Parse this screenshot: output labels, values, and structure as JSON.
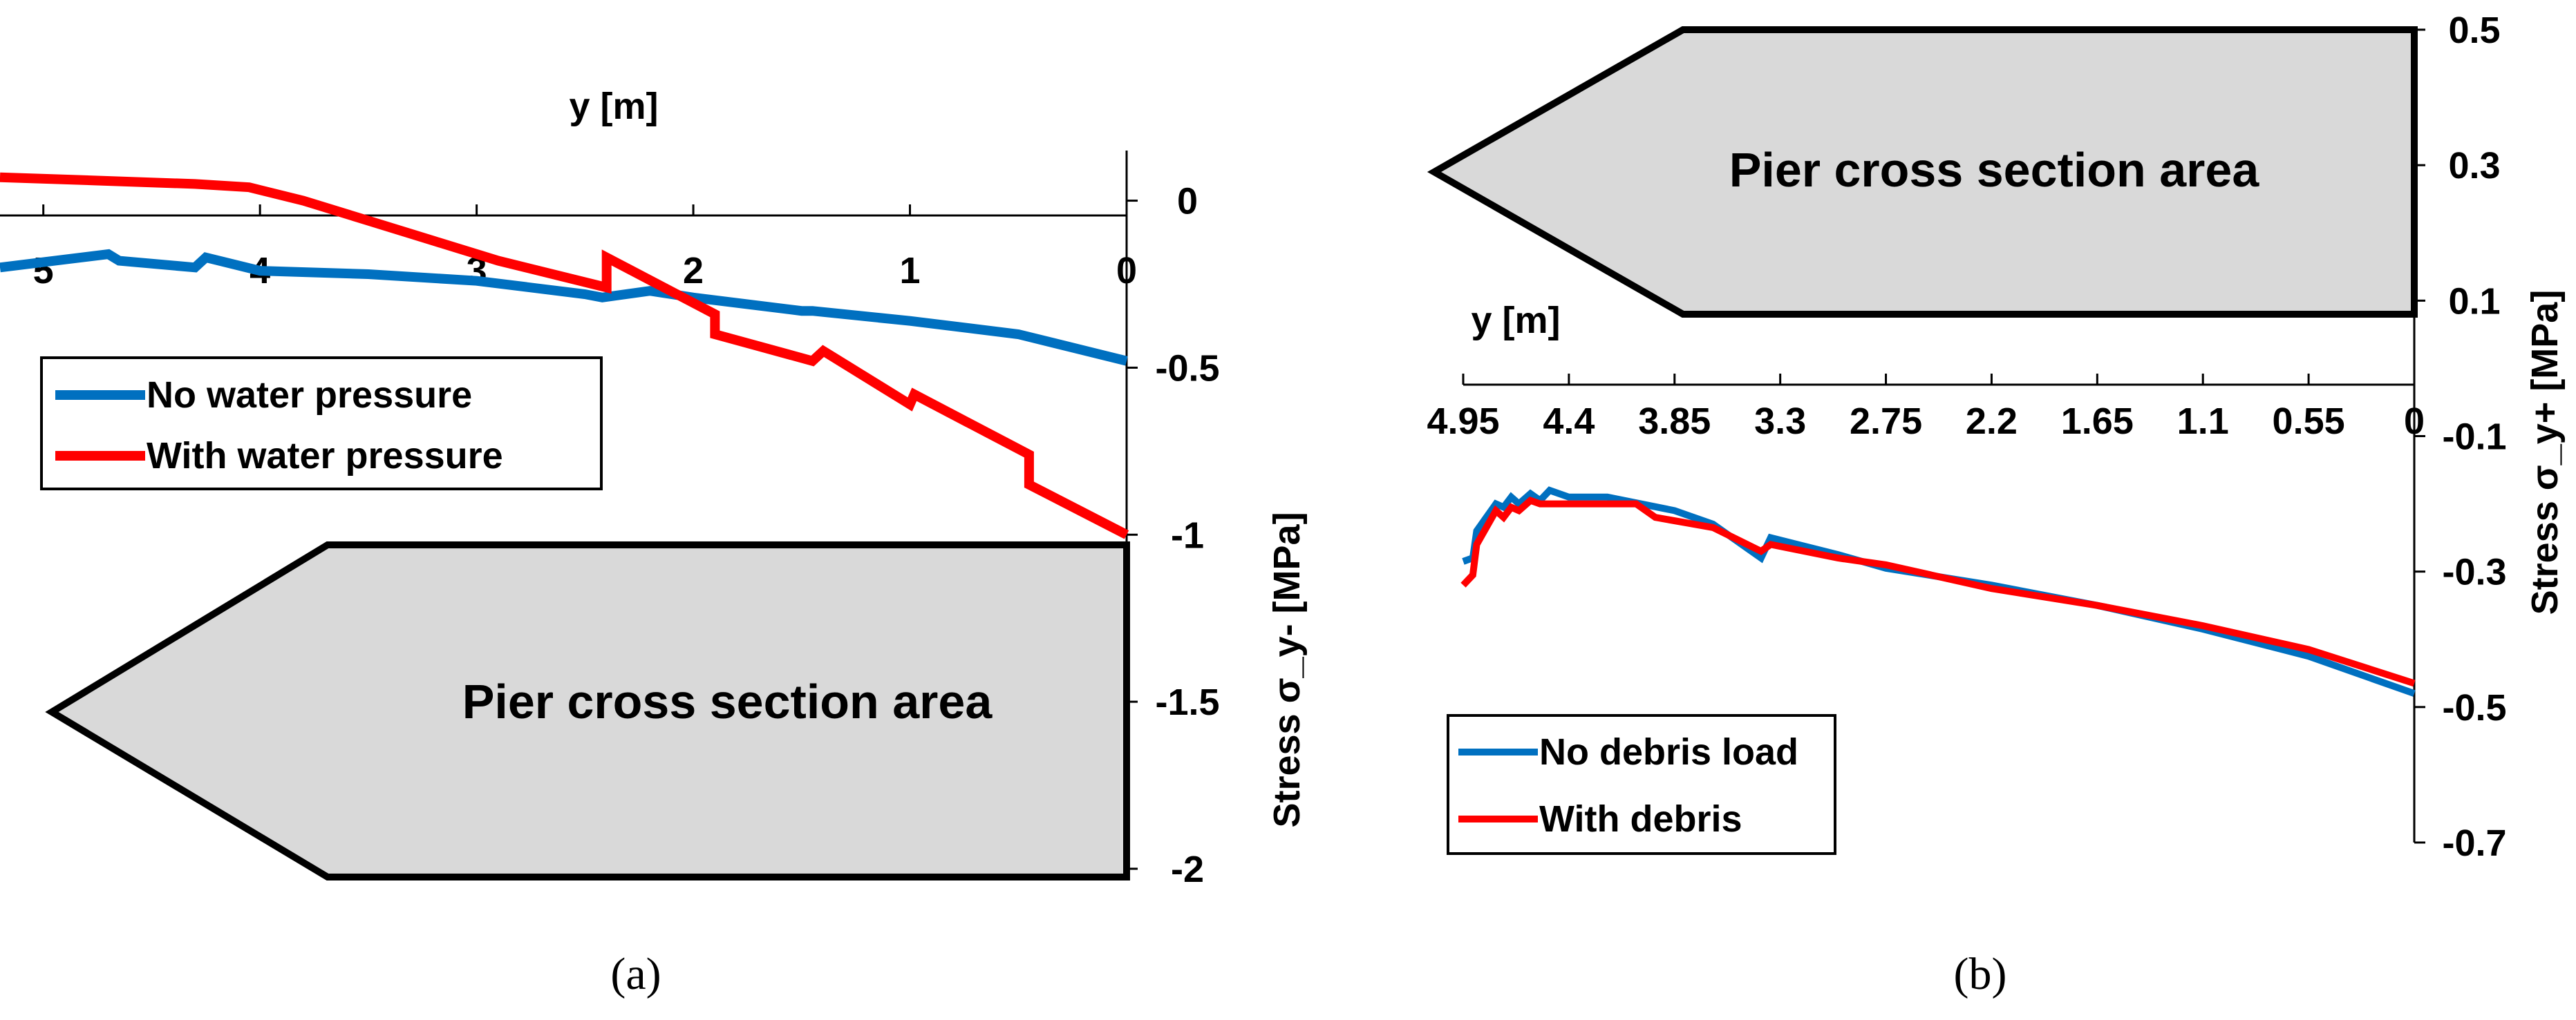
{
  "colors": {
    "no_load": "#0070C0",
    "with_load": "#FF0000",
    "pier_fill": "#D9D9D9"
  },
  "captions": {
    "a": "(a)",
    "b": "(b)"
  },
  "chart_data": [
    {
      "id": "a",
      "type": "line",
      "xlabel": "y [m]",
      "ylabel": "Stress σ_y- [MPa]",
      "xlim": [
        5.2,
        0
      ],
      "ylim": [
        -2.0,
        0.15
      ],
      "xticks": [
        {
          "value": 5,
          "label": "5"
        },
        {
          "value": 4,
          "label": "4"
        },
        {
          "value": 3,
          "label": "3"
        },
        {
          "value": 2,
          "label": "2"
        },
        {
          "value": 1,
          "label": "1"
        },
        {
          "value": 0,
          "label": "0"
        }
      ],
      "yticks": [
        {
          "value": 0,
          "label": "0"
        },
        {
          "value": -0.5,
          "label": "-0.5"
        },
        {
          "value": -1,
          "label": "-1"
        },
        {
          "value": -1.5,
          "label": "-1.5"
        },
        {
          "value": -2,
          "label": "-2"
        }
      ],
      "shape_label": "Pier cross section area",
      "legend_position": "left",
      "series": [
        {
          "name": "No water pressure",
          "color": "#0070C0",
          "points": [
            [
              5.2,
              -0.2
            ],
            [
              4.7,
              -0.16
            ],
            [
              4.65,
              -0.18
            ],
            [
              4.3,
              -0.2
            ],
            [
              4.25,
              -0.17
            ],
            [
              4.0,
              -0.21
            ],
            [
              3.5,
              -0.22
            ],
            [
              3.0,
              -0.24
            ],
            [
              2.5,
              -0.28
            ],
            [
              2.42,
              -0.29
            ],
            [
              2.2,
              -0.27
            ],
            [
              2.0,
              -0.29
            ],
            [
              1.5,
              -0.33
            ],
            [
              1.45,
              -0.33
            ],
            [
              1.0,
              -0.36
            ],
            [
              0.5,
              -0.4
            ],
            [
              0.0,
              -0.48
            ]
          ]
        },
        {
          "name": "With water pressure",
          "color": "#FF0000",
          "points": [
            [
              5.2,
              0.07
            ],
            [
              4.75,
              0.06
            ],
            [
              4.3,
              0.05
            ],
            [
              4.05,
              0.04
            ],
            [
              3.8,
              0.0
            ],
            [
              3.5,
              -0.06
            ],
            [
              3.2,
              -0.12
            ],
            [
              2.9,
              -0.18
            ],
            [
              2.4,
              -0.26
            ],
            [
              2.4,
              -0.17
            ],
            [
              1.9,
              -0.34
            ],
            [
              1.9,
              -0.4
            ],
            [
              1.45,
              -0.48
            ],
            [
              1.4,
              -0.45
            ],
            [
              1.0,
              -0.61
            ],
            [
              0.98,
              -0.58
            ],
            [
              0.45,
              -0.76
            ],
            [
              0.45,
              -0.85
            ],
            [
              0.0,
              -1.0
            ]
          ]
        }
      ]
    },
    {
      "id": "b",
      "type": "line",
      "xlabel": "y [m]",
      "ylabel": "Stress σ_y+ [MPa]",
      "xlim": [
        4.95,
        0
      ],
      "ylim": [
        -0.7,
        0.5
      ],
      "xticks": [
        {
          "value": 4.95,
          "label": "4.95"
        },
        {
          "value": 4.4,
          "label": "4.4"
        },
        {
          "value": 3.85,
          "label": "3.85"
        },
        {
          "value": 3.3,
          "label": "3.3"
        },
        {
          "value": 2.75,
          "label": "2.75"
        },
        {
          "value": 2.2,
          "label": "2.2"
        },
        {
          "value": 1.65,
          "label": "1.65"
        },
        {
          "value": 1.1,
          "label": "1.1"
        },
        {
          "value": 0.55,
          "label": "0.55"
        },
        {
          "value": 0,
          "label": "0"
        }
      ],
      "yticks": [
        {
          "value": 0.5,
          "label": "0.5"
        },
        {
          "value": 0.3,
          "label": "0.3"
        },
        {
          "value": 0.1,
          "label": "0.1"
        },
        {
          "value": -0.1,
          "label": "-0.1"
        },
        {
          "value": -0.3,
          "label": "-0.3"
        },
        {
          "value": -0.5,
          "label": "-0.5"
        },
        {
          "value": -0.7,
          "label": "-0.7"
        }
      ],
      "shape_label": "Pier cross section area",
      "legend_position": "bottom-left",
      "series": [
        {
          "name": "No debris load",
          "color": "#0070C0",
          "points": [
            [
              4.95,
              -0.285
            ],
            [
              4.9,
              -0.28
            ],
            [
              4.88,
              -0.24
            ],
            [
              4.83,
              -0.22
            ],
            [
              4.78,
              -0.2
            ],
            [
              4.74,
              -0.205
            ],
            [
              4.7,
              -0.19
            ],
            [
              4.66,
              -0.2
            ],
            [
              4.6,
              -0.185
            ],
            [
              4.55,
              -0.195
            ],
            [
              4.5,
              -0.18
            ],
            [
              4.4,
              -0.19
            ],
            [
              4.2,
              -0.19
            ],
            [
              3.85,
              -0.21
            ],
            [
              3.65,
              -0.23
            ],
            [
              3.4,
              -0.28
            ],
            [
              3.35,
              -0.25
            ],
            [
              3.0,
              -0.275
            ],
            [
              2.75,
              -0.295
            ],
            [
              2.2,
              -0.32
            ],
            [
              1.65,
              -0.35
            ],
            [
              1.1,
              -0.385
            ],
            [
              0.55,
              -0.425
            ],
            [
              0.0,
              -0.48
            ]
          ]
        },
        {
          "name": "With debris",
          "color": "#FF0000",
          "points": [
            [
              4.95,
              -0.32
            ],
            [
              4.9,
              -0.305
            ],
            [
              4.88,
              -0.26
            ],
            [
              4.83,
              -0.235
            ],
            [
              4.78,
              -0.21
            ],
            [
              4.74,
              -0.22
            ],
            [
              4.7,
              -0.205
            ],
            [
              4.66,
              -0.21
            ],
            [
              4.6,
              -0.195
            ],
            [
              4.55,
              -0.2
            ],
            [
              4.3,
              -0.2
            ],
            [
              4.05,
              -0.2
            ],
            [
              3.95,
              -0.22
            ],
            [
              3.65,
              -0.235
            ],
            [
              3.4,
              -0.27
            ],
            [
              3.35,
              -0.26
            ],
            [
              3.0,
              -0.28
            ],
            [
              2.75,
              -0.29
            ],
            [
              2.2,
              -0.325
            ],
            [
              1.65,
              -0.35
            ],
            [
              1.1,
              -0.38
            ],
            [
              0.55,
              -0.415
            ],
            [
              0.0,
              -0.465
            ]
          ]
        }
      ]
    }
  ]
}
